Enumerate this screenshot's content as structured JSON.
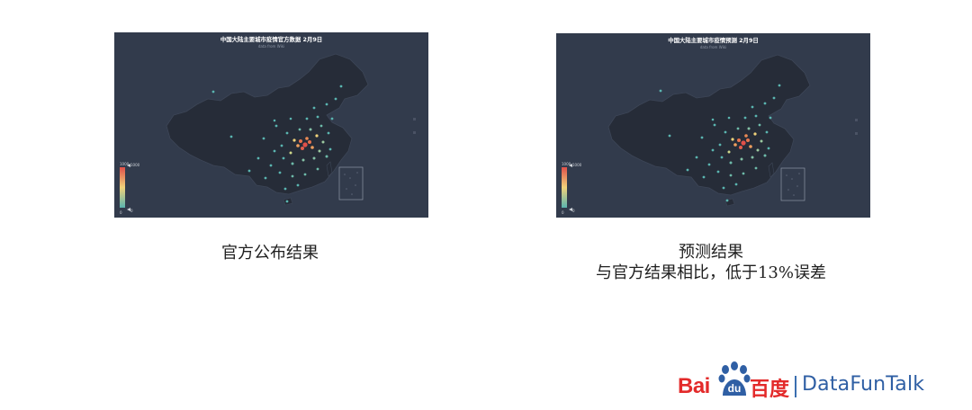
{
  "maps": [
    {
      "title": "中国大陆主要城市疫情官方数据 2月9日",
      "subtitle": "data from Wiki",
      "legend_max": "1000",
      "legend_min": "0",
      "caption": "官方公布结果",
      "caption_line2": ""
    },
    {
      "title": "中国大陆主要城市疫情预测 2月9日",
      "subtitle": "data from Wiki",
      "legend_max": "1000",
      "legend_min": "0",
      "caption": "预测结果",
      "caption_line2": "与官方结果相比，低于13%误差"
    }
  ],
  "colors": {
    "map_background": "#323b4c",
    "land": "#262c38",
    "land_border": "#3d4657",
    "low_value": "#5ab5b0",
    "mid_value": "#f0d27a",
    "high_value": "#e0504a"
  },
  "logo": {
    "brand_prefix": "Bai",
    "brand_circle": "du",
    "brand_cn": "百度",
    "partner": "DataFunTalk"
  }
}
